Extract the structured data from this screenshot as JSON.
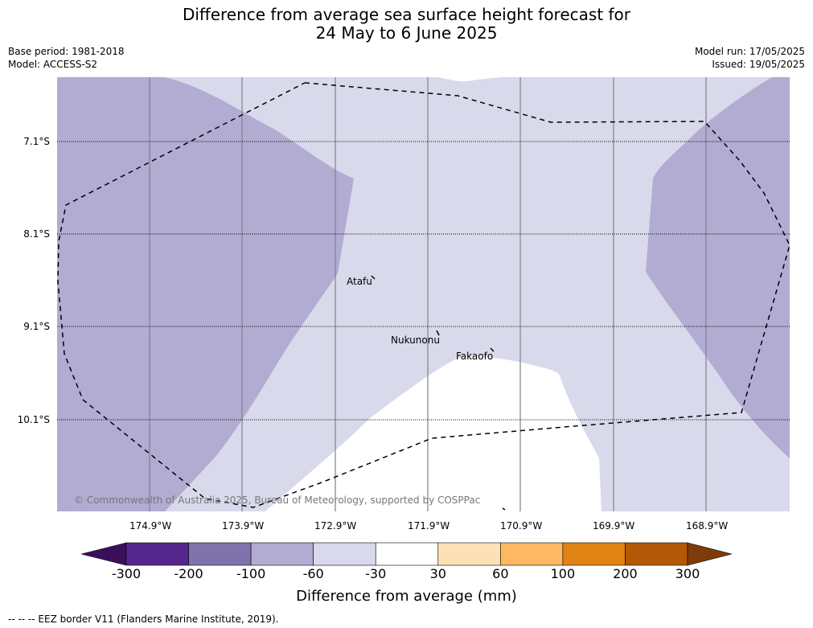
{
  "title_line1": "Difference from average sea surface height forecast for",
  "title_line2": "24 May to 6 June 2025",
  "base_period": "Base period: 1981-2018",
  "model": "Model: ACCESS-S2",
  "model_run": "Model run: 17/05/2025",
  "issued": "Issued: 19/05/2025",
  "longitudes": [
    "174.9°W",
    "173.9°W",
    "172.9°W",
    "171.9°W",
    "170.9°W",
    "169.9°W",
    "168.9°W"
  ],
  "latitudes": [
    "7.1°S",
    "8.1°S",
    "9.1°S",
    "10.1°S"
  ],
  "places": [
    "Atafu",
    "Nukunonu",
    "Fakaofo"
  ],
  "copyright": "© Commonwealth of Australia 2025, Bureau of Meteorology, supported by COSPPac",
  "colorbar": {
    "title": "Difference from average (mm)",
    "labels": [
      "-300",
      "-200",
      "-100",
      "-60",
      "-30",
      "30",
      "60",
      "100",
      "200",
      "300"
    ],
    "colors": [
      "#3b0f5a",
      "#54278f",
      "#8073ac",
      "#b2abd2",
      "#d8daeb",
      "#ffffff",
      "#fee0b6",
      "#fdb863",
      "#e08214",
      "#b35806",
      "#7f3b08"
    ]
  },
  "footnote": "--  --  -- EEZ border V11 (Flanders Marine Institute, 2019)."
}
